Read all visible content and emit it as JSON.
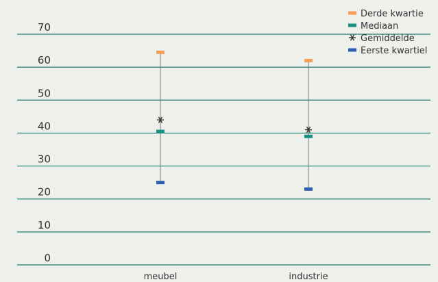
{
  "chart_data": {
    "type": "scatter",
    "categories": [
      "meubel",
      "industrie"
    ],
    "yticks": [
      0,
      10,
      20,
      30,
      40,
      50,
      60,
      70
    ],
    "ylim": [
      0,
      70
    ],
    "grid": true,
    "legend_position": "top-right",
    "series": [
      {
        "name": "Derde kwartie",
        "color": "#f4a05a",
        "marker": "dash",
        "values": [
          64.5,
          62
        ]
      },
      {
        "name": "Mediaan",
        "color": "#1a9080",
        "marker": "dash",
        "values": [
          40.5,
          39
        ]
      },
      {
        "name": "Gemiddelde",
        "color": "#333333",
        "marker": "asterisk",
        "values": [
          44,
          41
        ]
      },
      {
        "name": "Eerste kwartiel",
        "color": "#2f5fb0",
        "marker": "dash",
        "values": [
          25,
          23
        ]
      }
    ]
  },
  "colors": {
    "gridline": "#1e7a6e",
    "whisker": "#777777",
    "background": "#eef0ec"
  }
}
